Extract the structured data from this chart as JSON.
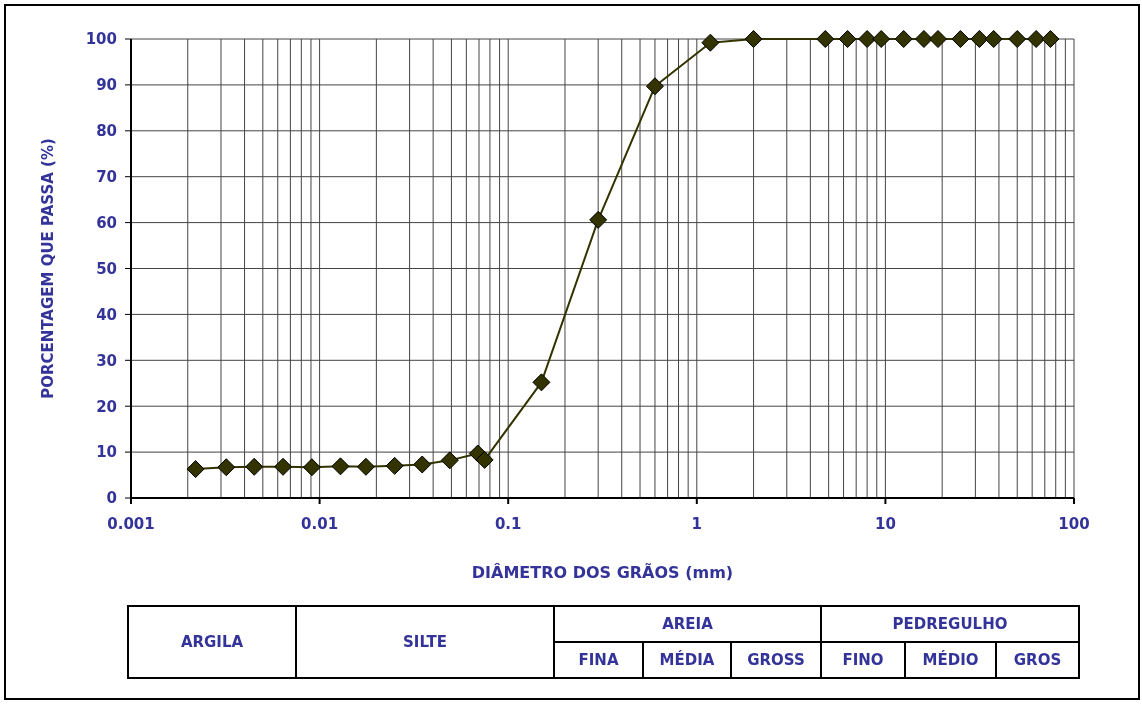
{
  "chart_data": {
    "type": "line",
    "xlabel": "DIÂMETRO DOS GRÃOS (mm)",
    "ylabel": "PORCENTAGEM QUE PASSA (%)",
    "x": [
      0.0022,
      0.0032,
      0.0045,
      0.0064,
      0.0091,
      0.0129,
      0.0176,
      0.025,
      0.035,
      0.049,
      0.069,
      0.075,
      0.15,
      0.3,
      0.6,
      1.18,
      2,
      4.8,
      6.3,
      8,
      9.5,
      12.5,
      16,
      19,
      25,
      31.5,
      37.5,
      50,
      63,
      75
    ],
    "values": [
      6.3,
      6.7,
      6.8,
      6.8,
      6.7,
      6.9,
      6.8,
      7.0,
      7.3,
      8.2,
      9.7,
      8.3,
      25.2,
      60.6,
      89.7,
      99.2,
      100,
      100,
      100,
      100,
      100,
      100,
      100,
      100,
      100,
      100,
      100,
      100,
      100,
      100
    ],
    "color": "#333300",
    "marker": "diamond",
    "log": "x",
    "grid": true,
    "xlim": [
      0.001,
      100
    ],
    "xticks": [
      0.001,
      0.01,
      0.1,
      1,
      10,
      100
    ],
    "ylim": [
      0,
      100
    ],
    "yticks": [
      0,
      10,
      20,
      30,
      40,
      50,
      60,
      70,
      80,
      90,
      100
    ],
    "annotations": [
      "ARGILA",
      "SILTE",
      "AREIA",
      "FINA",
      "MÉDIA",
      "GROSS",
      "PEDREGULHO",
      "FINO",
      "MÉDIO",
      "GROS"
    ]
  }
}
